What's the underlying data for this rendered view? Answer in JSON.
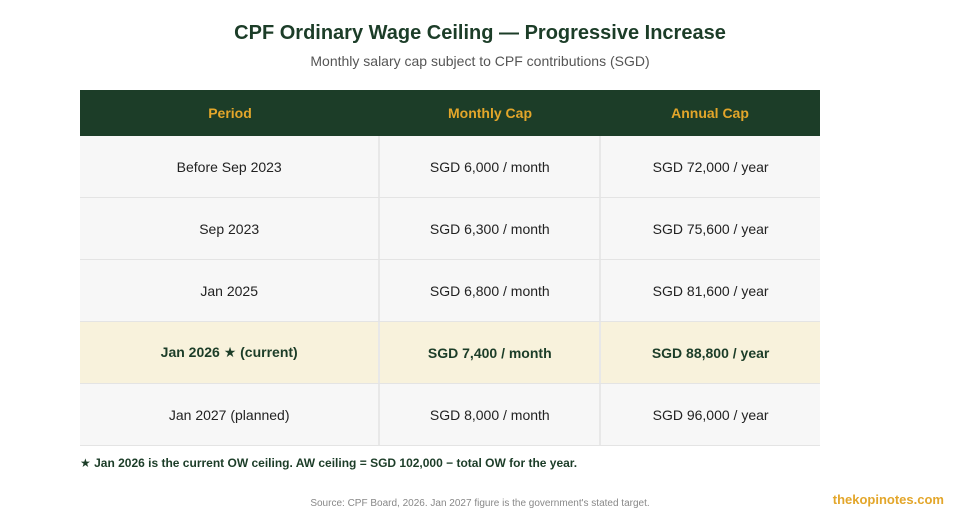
{
  "header": {
    "title": "CPF Ordinary Wage Ceiling — Progressive Increase",
    "subtitle": "Monthly salary cap subject to CPF contributions (SGD)"
  },
  "table": {
    "columns": [
      "Period",
      "Monthly Cap",
      "Annual Cap"
    ],
    "rows": [
      {
        "period": "Before Sep 2023",
        "monthly": "SGD 6,000 / month",
        "annual": "SGD 72,000 / year",
        "highlight": false
      },
      {
        "period": "Sep 2023",
        "monthly": "SGD 6,300 / month",
        "annual": "SGD 75,600 / year",
        "highlight": false
      },
      {
        "period": "Jan 2025",
        "monthly": "SGD 6,800 / month",
        "annual": "SGD 81,600 / year",
        "highlight": false
      },
      {
        "period": "Jan 2026 ★ (current)",
        "monthly": "SGD 7,400 / month",
        "annual": "SGD 88,800 / year",
        "highlight": true
      },
      {
        "period": "Jan 2027 (planned)",
        "monthly": "SGD 8,000 / month",
        "annual": "SGD 96,000 / year",
        "highlight": false
      }
    ]
  },
  "footnote": "★ Jan 2026 is the current OW ceiling. AW ceiling = SGD 102,000 − total OW for the year.",
  "source": "Source: CPF Board, 2026. Jan 2027 figure is the government's stated target.",
  "watermark": "thekopinotes.com",
  "colors": {
    "header_bg": "#1c3d28",
    "header_text": "#e3a62a",
    "highlight_row": "#f8f2dc",
    "row_bg": "#f7f7f7"
  }
}
